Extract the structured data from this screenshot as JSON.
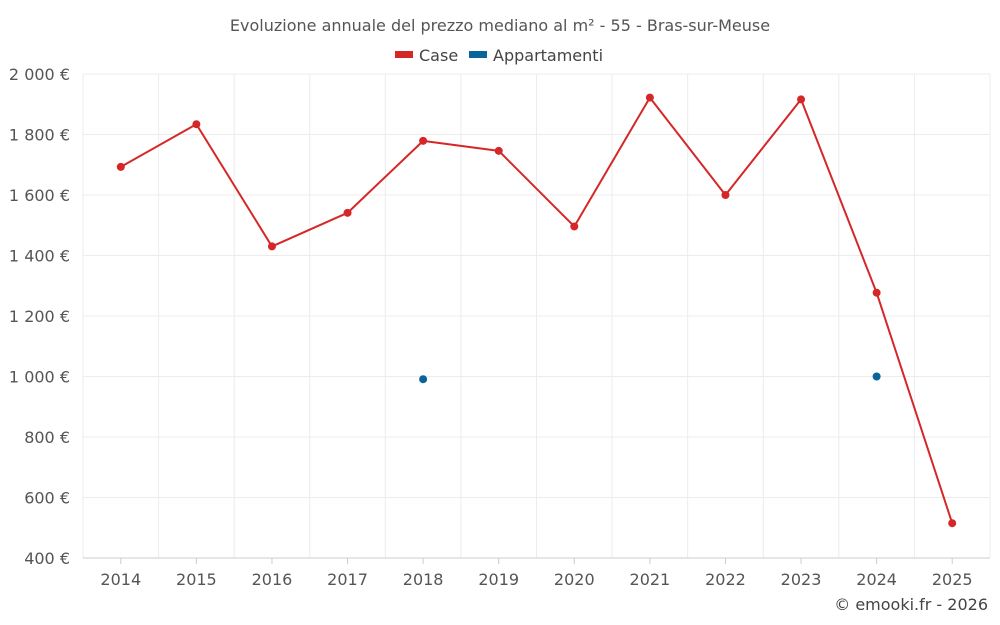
{
  "chart_data": {
    "type": "line",
    "title": "Evoluzione annuale del prezzo mediano al m² - 55 - Bras-sur-Meuse",
    "categories": [
      "2014",
      "2015",
      "2016",
      "2017",
      "2018",
      "2019",
      "2020",
      "2021",
      "2022",
      "2023",
      "2024",
      "2025"
    ],
    "series": [
      {
        "name": "Case",
        "color": "#d62728",
        "values": [
          1693,
          1834,
          1430,
          1541,
          1779,
          1746,
          1496,
          1922,
          1600,
          1916,
          1277,
          515
        ]
      },
      {
        "name": "Appartamenti",
        "color": "#08649b",
        "values": [
          null,
          null,
          null,
          null,
          991,
          null,
          null,
          null,
          null,
          null,
          1000,
          null
        ]
      }
    ],
    "ylim": [
      400,
      2000
    ],
    "yticks": [
      400,
      600,
      800,
      1000,
      1200,
      1400,
      1600,
      1800,
      2000
    ],
    "ytick_labels": [
      "400 €",
      "600 €",
      "800 €",
      "1 000 €",
      "1 200 €",
      "1 400 €",
      "1 600 €",
      "1 800 €",
      "2 000 €"
    ],
    "legend_position": "top-center",
    "grid": true,
    "xlabel": "",
    "ylabel": ""
  },
  "credit": "© emooki.fr - 2026"
}
